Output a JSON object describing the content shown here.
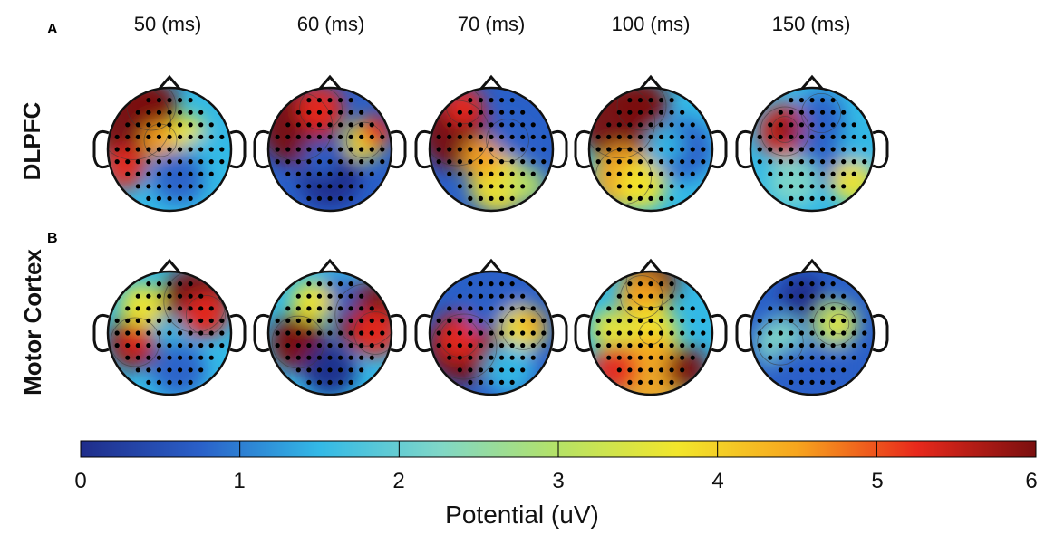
{
  "panels": [
    {
      "letter": "A",
      "condition": "DLPFC"
    },
    {
      "letter": "B",
      "condition": "Motor Cortex"
    }
  ],
  "time_labels": [
    "50 (ms)",
    "60 (ms)",
    "70 (ms)",
    "100 (ms)",
    "150 (ms)"
  ],
  "colorbar": {
    "title": "Potential (uV)",
    "ticks": [
      "0",
      "1",
      "2",
      "3",
      "4",
      "5",
      "6"
    ],
    "min": 0,
    "max": 6,
    "colormap": [
      "#1f2d8a",
      "#2a60c8",
      "#33b9e6",
      "#7fd7c8",
      "#b5e266",
      "#f2e62b",
      "#f7a51e",
      "#e8291c",
      "#7a0f0f"
    ]
  },
  "topomaps": {
    "DLPFC": [
      {
        "time": "50 (ms)",
        "dominant_pattern": "frontal-left high, central/posterior low"
      },
      {
        "time": "60 (ms)",
        "dominant_pattern": "left frontal high, midline low"
      },
      {
        "time": "70 (ms)",
        "dominant_pattern": "left frontal high, posterior mid"
      },
      {
        "time": "100 (ms)",
        "dominant_pattern": "left/frontal high, right low"
      },
      {
        "time": "150 (ms)",
        "dominant_pattern": "left-frontal focus, mostly low"
      }
    ],
    "Motor Cortex": [
      {
        "time": "50 (ms)",
        "dominant_pattern": "left central focus, right frontal high"
      },
      {
        "time": "60 (ms)",
        "dominant_pattern": "left central focus, right high"
      },
      {
        "time": "70 (ms)",
        "dominant_pattern": "left central high, right mid"
      },
      {
        "time": "100 (ms)",
        "dominant_pattern": "frontal and posterior high, central focus"
      },
      {
        "time": "150 (ms)",
        "dominant_pattern": "mostly low, small right focus"
      }
    ]
  }
}
